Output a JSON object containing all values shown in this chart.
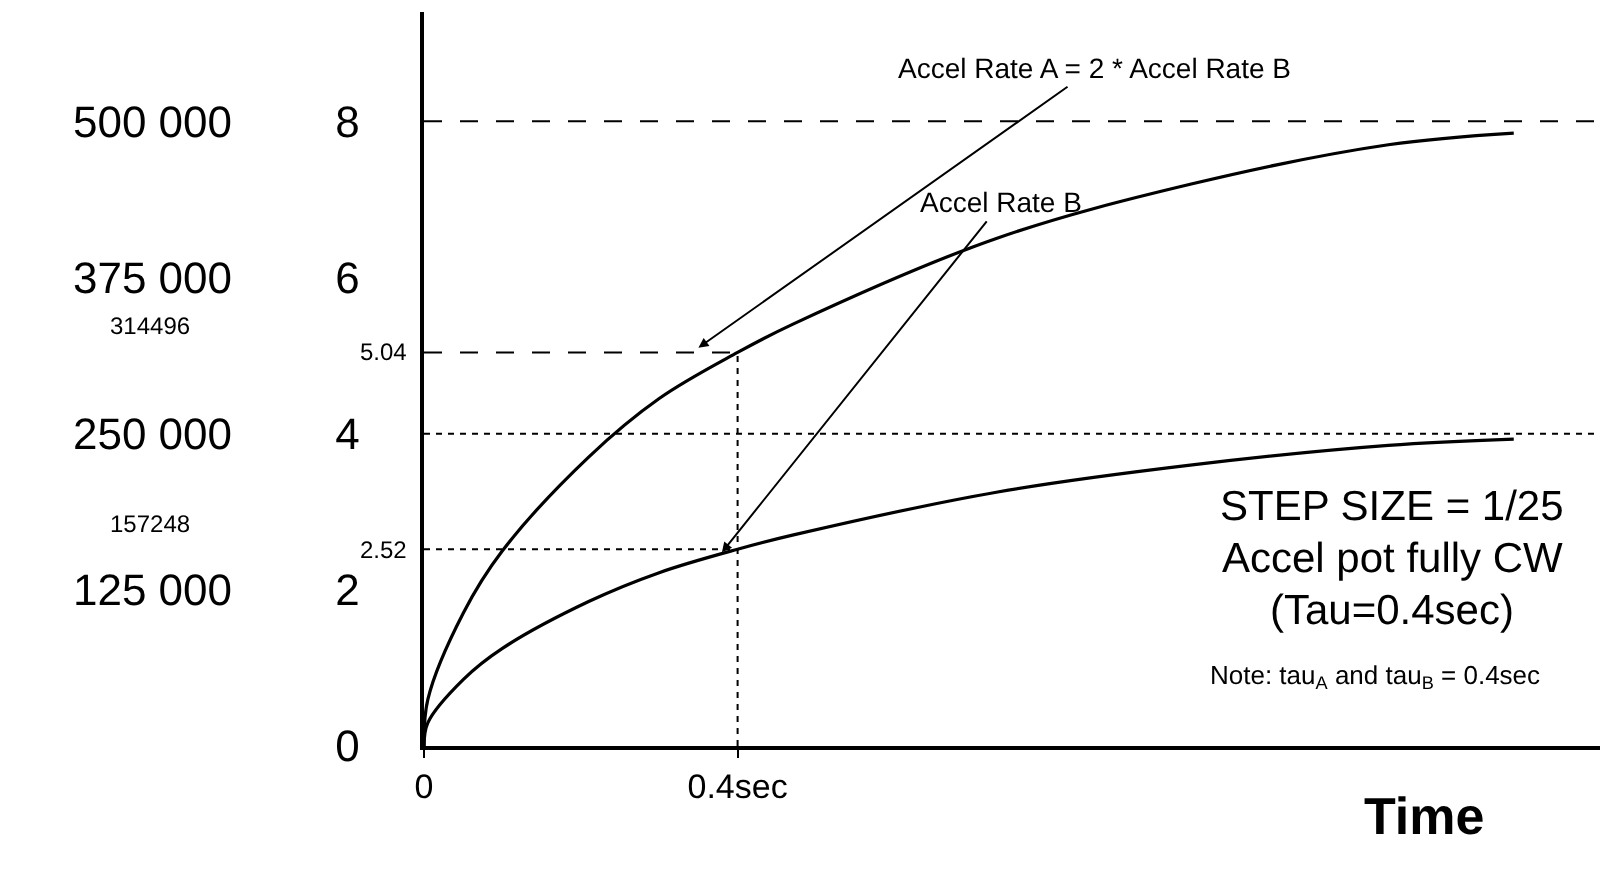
{
  "chart_data": {
    "type": "line",
    "xlabel": "Time",
    "x": [
      0,
      0.005,
      0.05,
      0.1,
      0.21,
      0.3,
      0.4,
      0.47,
      0.73,
      0.98,
      1.23,
      1.39
    ],
    "series": [
      {
        "color": "#000000",
        "values": [
          0,
          0.6,
          1.7,
          2.5,
          3.7,
          4.45,
          5.04,
          5.4,
          6.5,
          7.2,
          7.7,
          7.85
        ]
      },
      {
        "color": "#000000",
        "values": [
          0,
          0.3,
          0.85,
          1.25,
          1.85,
          2.22,
          2.52,
          2.7,
          3.25,
          3.6,
          3.85,
          3.93
        ]
      }
    ],
    "xlim": [
      0,
      1.5
    ],
    "xticks": [
      0,
      {
        "value": 0.4,
        "label": "0.4sec"
      }
    ],
    "ylim": [
      0,
      9.4
    ],
    "yticks": [
      0,
      2,
      4,
      6,
      8
    ],
    "y2lim": [
      0,
      587500
    ],
    "y2ticks": [
      {
        "value": 125000,
        "label": "125 000"
      },
      {
        "value": 250000,
        "label": "250 000"
      },
      {
        "value": 375000,
        "label": "375 000"
      },
      {
        "value": 500000,
        "label": "500 000"
      }
    ],
    "ref_lines": [
      {
        "axis": "y",
        "value": 8,
        "line_style": "dashed",
        "color": "#000000"
      },
      {
        "axis": "y",
        "value": 5.04,
        "label": "5.04",
        "line_style": "dashed",
        "color": "#000000"
      },
      {
        "axis": "y",
        "value": 4,
        "line_style": "dotted",
        "color": "#000000"
      },
      {
        "axis": "y",
        "value": 2.52,
        "label": "2.52",
        "line_style": "dotted",
        "color": "#000000"
      },
      {
        "axis": "x",
        "value": 0.4,
        "line_style": "dotted",
        "color": "#000000"
      }
    ],
    "annotations": [
      {
        "text": "Accel Rate A = 2 * Accel Rate B",
        "x": 0.35,
        "y": 5.1
      },
      {
        "text": "Accel Rate B",
        "x": 0.38,
        "y": 2.48
      },
      "314496",
      "157248",
      "STEP SIZE = 1/25",
      "Accel pot fully CW",
      "(Tau=0.4sec)",
      "Note: tau$_{A}$ and tau$_{B}$ = 0.4sec"
    ],
    "grid": false,
    "marker": "none",
    "line_style": "solid"
  }
}
